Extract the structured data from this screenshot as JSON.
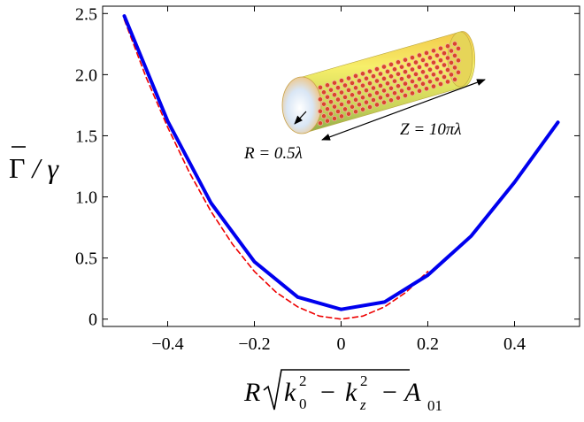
{
  "chart_data": {
    "type": "line",
    "xlim": [
      -0.55,
      0.55
    ],
    "ylim": [
      -0.06,
      2.56
    ],
    "x_ticks": [
      -0.4,
      -0.2,
      0,
      0.2,
      0.4
    ],
    "x_tick_labels": [
      "−0.4",
      "−0.2",
      "0",
      "0.2",
      "0.4"
    ],
    "y_ticks": [
      0,
      0.5,
      1.0,
      1.5,
      2.0,
      2.5
    ],
    "y_tick_labels": [
      "0",
      "0.5",
      "1.0",
      "1.5",
      "2.0",
      "2.5"
    ],
    "xlabel": {
      "prefix": "R",
      "inner_a": "k",
      "sub_a": "0",
      "sup_a": "2",
      "minus": "−",
      "inner_b": "k",
      "sub_b": "z",
      "sup_b": "2",
      "suffix": "− A",
      "sub_c": "01"
    },
    "ylabel": {
      "overbar_symbol": "Γ",
      "rest": " / γ"
    },
    "series": [
      {
        "style": "solid",
        "color": "#0000ee",
        "x": [
          -0.5,
          -0.4,
          -0.3,
          -0.2,
          -0.1,
          0.0,
          0.1,
          0.2,
          0.3,
          0.4,
          0.5
        ],
        "y": [
          2.48,
          1.62,
          0.95,
          0.47,
          0.18,
          0.08,
          0.14,
          0.36,
          0.68,
          1.12,
          1.61
        ]
      },
      {
        "style": "dashed",
        "color": "#ee0000",
        "x": [
          -0.5,
          -0.45,
          -0.4,
          -0.35,
          -0.3,
          -0.25,
          -0.2,
          -0.15,
          -0.1,
          -0.05,
          0.0,
          0.05,
          0.1,
          0.15,
          0.2
        ],
        "y": [
          2.45,
          1.98,
          1.57,
          1.2,
          0.88,
          0.61,
          0.39,
          0.22,
          0.1,
          0.025,
          0.0,
          0.025,
          0.1,
          0.22,
          0.39
        ]
      }
    ],
    "inset": {
      "r_label": "R = 0.5λ",
      "z_label": "Z = 10πλ"
    }
  }
}
